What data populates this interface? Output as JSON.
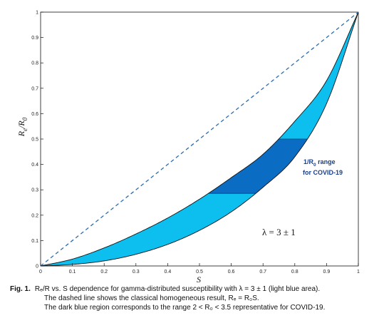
{
  "chart_data": {
    "type": "area",
    "xlabel": "S",
    "ylabel": "R_e/R_0",
    "xlim": [
      0,
      1
    ],
    "ylim": [
      0,
      1
    ],
    "grid": false,
    "x_ticks": [
      "0",
      "0.1",
      "0.2",
      "0.3",
      "0.4",
      "0.5",
      "0.6",
      "0.7",
      "0.8",
      "0.9",
      "1"
    ],
    "y_ticks": [
      "0",
      "0.1",
      "0.2",
      "0.3",
      "0.4",
      "0.5",
      "0.6",
      "0.7",
      "0.8",
      "0.9",
      "1"
    ],
    "series": [
      {
        "kind": "dashed-line",
        "x": [
          0,
          1
        ],
        "y": [
          0,
          1
        ]
      },
      {
        "kind": "band-upper",
        "x": [
          0,
          0.1,
          0.2,
          0.3,
          0.4,
          0.5,
          0.6,
          0.7,
          0.8,
          0.9,
          1
        ],
        "y": [
          0,
          0.027,
          0.071,
          0.126,
          0.189,
          0.263,
          0.348,
          0.44,
          0.57,
          0.73,
          1
        ]
      },
      {
        "kind": "band-lower",
        "x": [
          0,
          0.1,
          0.2,
          0.3,
          0.4,
          0.5,
          0.6,
          0.7,
          0.8,
          0.9,
          1
        ],
        "y": [
          0,
          0.006,
          0.02,
          0.046,
          0.085,
          0.14,
          0.213,
          0.31,
          0.43,
          0.64,
          1
        ]
      }
    ],
    "highlight_band": {
      "y_range": [
        0.286,
        0.5
      ]
    },
    "annotations": {
      "range_label_line1": "1/R",
      "range_label_sub": "0",
      "range_label_rest": " range",
      "range_label_line2": "for COVID-19",
      "lambda_label": "λ = 3 ± 1"
    },
    "colors": {
      "light_band": "#0dbfee",
      "dark_band": "#0b6cc4",
      "dashed_line": "#2b6cb0",
      "annotation_text": "#1b3f8a"
    }
  },
  "caption": {
    "fig_label": "Fig. 1.",
    "line1": "Rₑ/R vs. S dependence for gamma-distributed susceptibility with λ = 3 ± 1 (light blue area).",
    "line2": "The dashed line shows the classical homogeneous result, Rₑ = R₀S.",
    "line3": "The dark blue region corresponds to the range 2 < R₀ < 3.5 representative for COVID-19."
  }
}
